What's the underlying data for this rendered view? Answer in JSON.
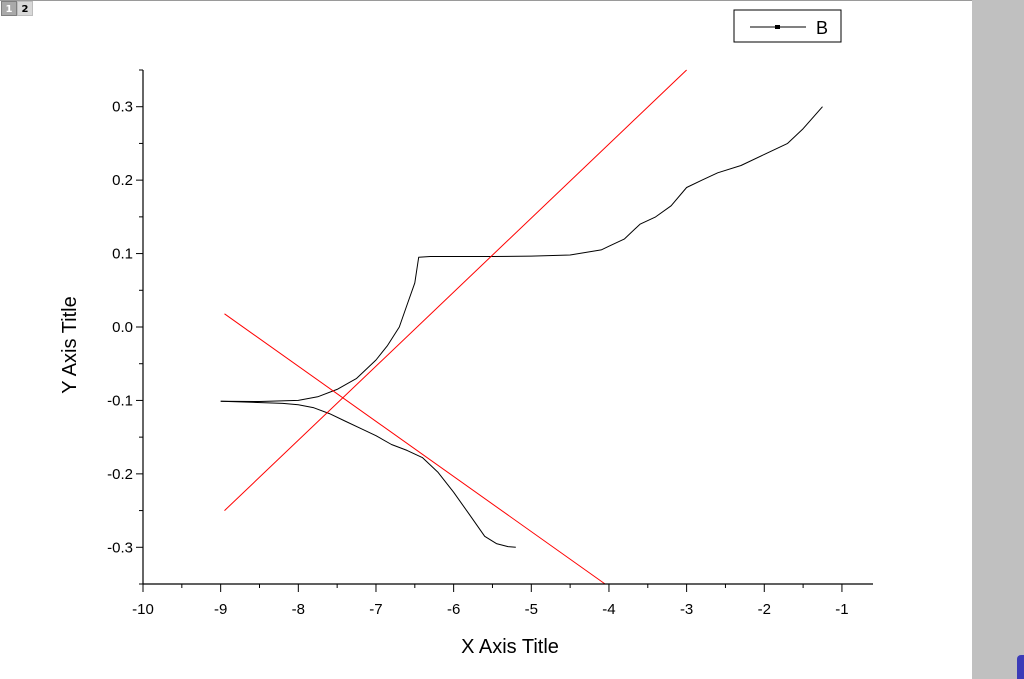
{
  "tabs": [
    {
      "label": "1",
      "active": true
    },
    {
      "label": "2",
      "active": false
    }
  ],
  "chart_data": {
    "type": "line",
    "xlabel": "X Axis Title",
    "ylabel": "Y Axis Title",
    "xlim": [
      -10,
      -0.6
    ],
    "ylim": [
      -0.35,
      0.35
    ],
    "xticks": [
      -10,
      -9,
      -8,
      -7,
      -6,
      -5,
      -4,
      -3,
      -2,
      -1
    ],
    "yticks": [
      -0.3,
      -0.2,
      -0.1,
      0.0,
      0.1,
      0.2,
      0.3
    ],
    "ytick_labels": [
      "-0.3",
      "-0.2",
      "-0.1",
      "0.0",
      "0.1",
      "0.2",
      "0.3"
    ],
    "grid": false,
    "legend": {
      "position": "top-right",
      "entries": [
        "B"
      ]
    },
    "series": [
      {
        "name": "B",
        "color": "#000000",
        "x": [
          -9.0,
          -8.5,
          -8.0,
          -7.75,
          -7.5,
          -7.25,
          -7.0,
          -6.85,
          -6.7,
          -6.6,
          -6.5,
          -6.45,
          -6.3,
          -6.0,
          -5.5,
          -5.0,
          -4.5,
          -4.1,
          -4.0,
          -3.8,
          -3.6,
          -3.4,
          -3.2,
          -3.0,
          -2.8,
          -2.6,
          -2.3,
          -2.0,
          -1.7,
          -1.5,
          -1.25
        ],
        "y": [
          -0.101,
          -0.1015,
          -0.1,
          -0.095,
          -0.085,
          -0.07,
          -0.045,
          -0.025,
          0.0,
          0.03,
          0.06,
          0.095,
          0.096,
          0.096,
          0.096,
          0.0965,
          0.098,
          0.105,
          0.11,
          0.12,
          0.14,
          0.15,
          0.165,
          0.19,
          0.2,
          0.21,
          0.22,
          0.235,
          0.25,
          0.27,
          0.3
        ]
      },
      {
        "name": "",
        "color": "#000000",
        "x": [
          -9.0,
          -8.6,
          -8.2,
          -8.0,
          -7.8,
          -7.6,
          -7.4,
          -7.2,
          -7.0,
          -6.8,
          -6.6,
          -6.4,
          -6.2,
          -6.0,
          -5.8,
          -5.6,
          -5.45,
          -5.3,
          -5.2
        ],
        "y": [
          -0.101,
          -0.1025,
          -0.104,
          -0.106,
          -0.11,
          -0.118,
          -0.128,
          -0.138,
          -0.148,
          -0.16,
          -0.168,
          -0.178,
          -0.198,
          -0.225,
          -0.255,
          -0.285,
          -0.295,
          -0.299,
          -0.3
        ]
      },
      {
        "name": "",
        "color": "#ff0000",
        "x": [
          -8.95,
          -4.05
        ],
        "y": [
          0.018,
          -0.35
        ]
      },
      {
        "name": "",
        "color": "#ff0000",
        "x": [
          -8.95,
          -3.0
        ],
        "y": [
          -0.25,
          0.35
        ]
      }
    ]
  }
}
